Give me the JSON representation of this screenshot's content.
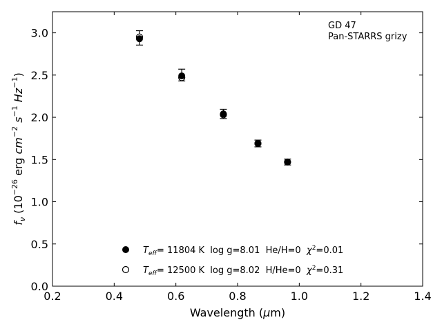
{
  "chart_data": {
    "type": "scatter",
    "title": "",
    "xlabel": "Wavelength (μm)",
    "ylabel": "f_ν (10^-26 erg cm^-2 s^-1 Hz^-1)",
    "xlim": [
      0.2,
      1.4
    ],
    "ylim": [
      0.0,
      3.25
    ],
    "x_ticks": [
      0.2,
      0.4,
      0.6,
      0.8,
      1.0,
      1.2,
      1.4
    ],
    "x_tick_labels": [
      "0.2",
      "0.4",
      "0.6",
      "0.8",
      "1.0",
      "1.2",
      "1.4"
    ],
    "y_ticks": [
      0.0,
      0.5,
      1.0,
      1.5,
      2.0,
      2.5,
      3.0
    ],
    "y_tick_labels": [
      "0.0",
      "0.5",
      "1.0",
      "1.5",
      "2.0",
      "2.5",
      "3.0"
    ],
    "grid": false,
    "annotations": [
      "GD 47",
      "Pan-STARRS grizy"
    ],
    "annotation_placement": "top-right",
    "legend_placement": "bottom-center",
    "observed": {
      "x": [
        0.482,
        0.619,
        0.754,
        0.866,
        0.962
      ],
      "y": [
        2.94,
        2.5,
        2.04,
        1.69,
        1.47
      ],
      "yerr": [
        0.085,
        0.07,
        0.055,
        0.04,
        0.035
      ]
    },
    "series": [
      {
        "name": "T_eff= 11804 K  log g=8.01  He/H=0  χ²=0.01",
        "marker": "filled",
        "x": [
          0.482,
          0.619,
          0.754,
          0.866,
          0.962
        ],
        "y": [
          2.93,
          2.49,
          2.04,
          1.69,
          1.47
        ]
      },
      {
        "name": "T_eff= 12500 K  log g=8.02  H/He=0  χ²=0.31",
        "marker": "open",
        "x": [
          0.482,
          0.619,
          0.754,
          0.866,
          0.962
        ],
        "y": [
          2.95,
          2.47,
          2.03,
          1.69,
          1.47
        ]
      }
    ]
  },
  "legend": {
    "entries": [
      {
        "teff": "11804 K",
        "rest_a": "  log g=8.01  He/H=0  ",
        "chi": "=0.01"
      },
      {
        "teff": "12500 K",
        "rest_a": "  log g=8.02  H/He=0  ",
        "chi": "=0.31"
      }
    ]
  },
  "colors": {
    "marker": "#000000",
    "axes": "#000000",
    "background": "#ffffff"
  }
}
